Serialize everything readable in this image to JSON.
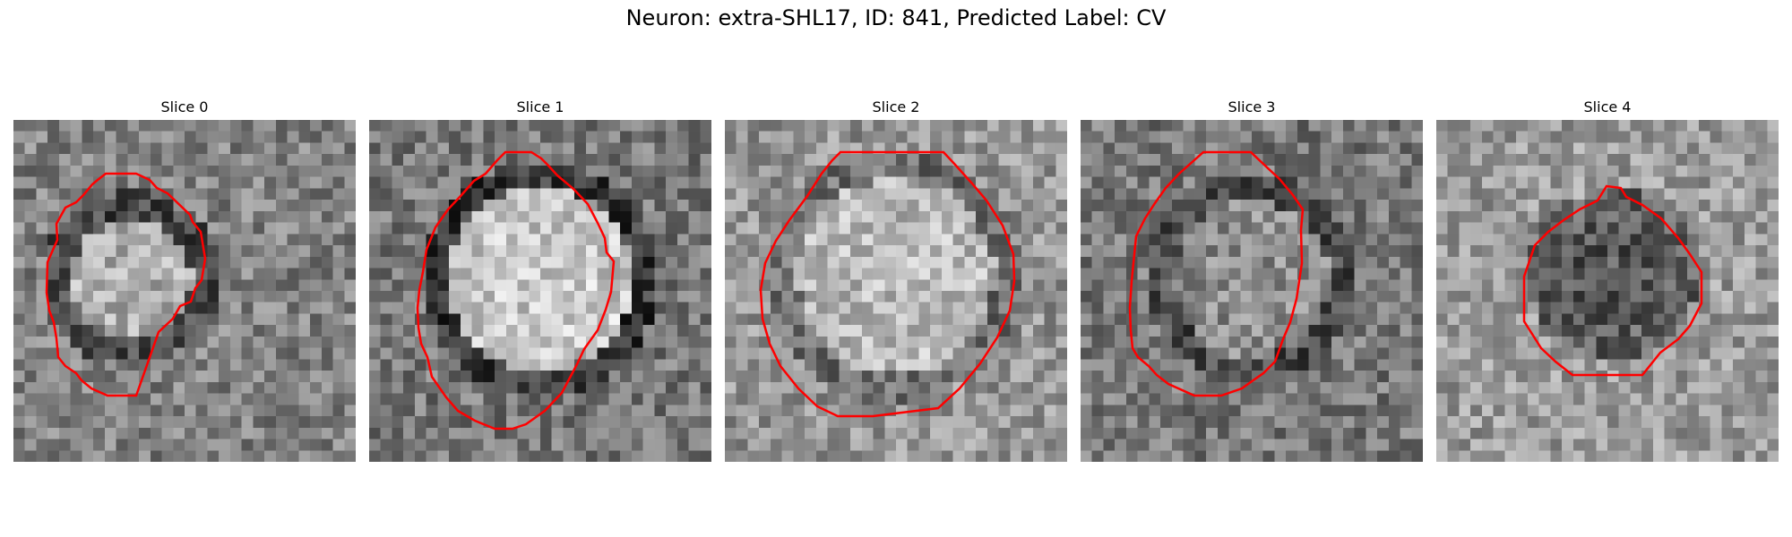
{
  "figure": {
    "title": "Neuron: extra-SHL17, ID: 841, Predicted Label: CV"
  },
  "contour_color": "#ff0000",
  "slices": [
    {
      "title": "Slice 0"
    },
    {
      "title": "Slice 1"
    },
    {
      "title": "Slice 2"
    },
    {
      "title": "Slice 3"
    },
    {
      "title": "Slice 4"
    }
  ]
}
